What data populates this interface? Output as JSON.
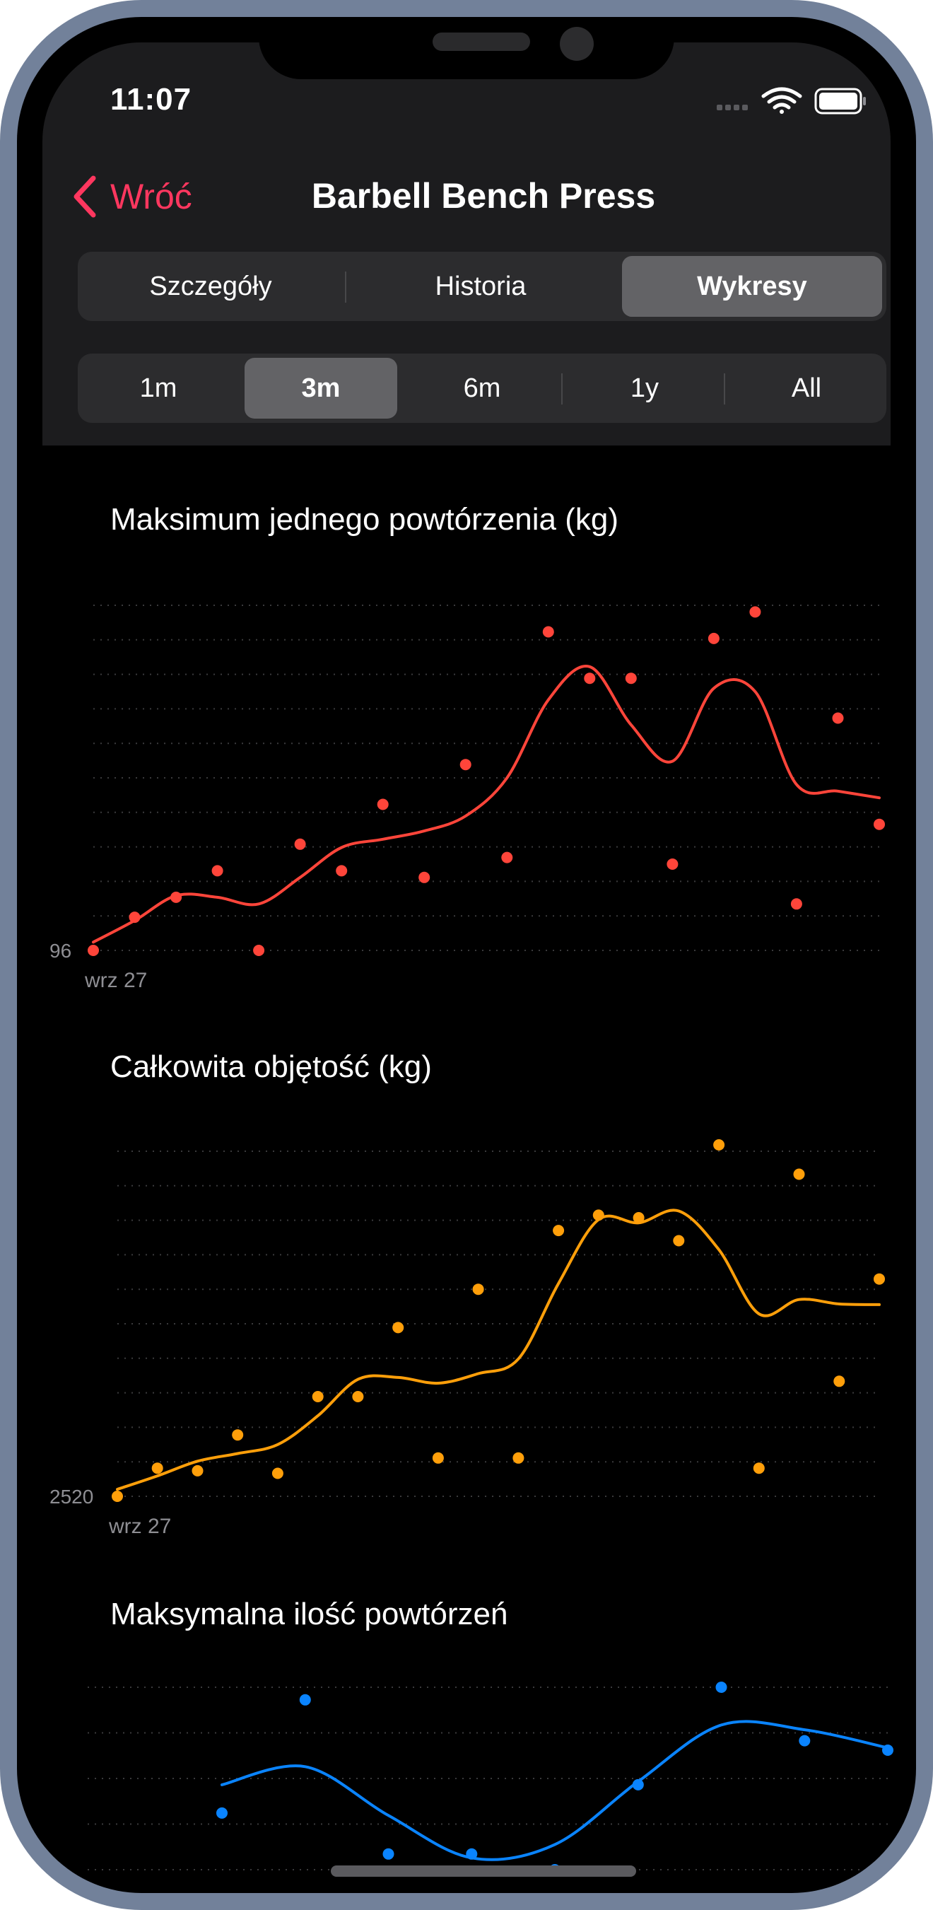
{
  "status_bar": {
    "time": "11:07",
    "icons": [
      "cellular-signal-icon",
      "wifi-icon",
      "battery-icon"
    ]
  },
  "nav": {
    "back_label": "Wróć",
    "title": "Barbell Bench Press"
  },
  "tabs": [
    {
      "label": "Szczegóły",
      "selected": false
    },
    {
      "label": "Historia",
      "selected": false
    },
    {
      "label": "Wykresy",
      "selected": true
    }
  ],
  "ranges": [
    {
      "label": "1m",
      "selected": false
    },
    {
      "label": "3m",
      "selected": true
    },
    {
      "label": "6m",
      "selected": false
    },
    {
      "label": "1y",
      "selected": false
    },
    {
      "label": "All",
      "selected": false
    }
  ],
  "colors": {
    "accent": "#ff375f",
    "one_rep_max": "#ff453a",
    "volume": "#ff9f0a",
    "reps": "#0a84ff",
    "background": "#000000",
    "panel": "#1c1c1e"
  },
  "chart_data": [
    {
      "type": "scatter",
      "title": "Maksimum jednego powtórzenia (kg)",
      "smoothed_line": true,
      "grid": true,
      "ylim": [
        96,
        122
      ],
      "y_tick_labels": [
        "96"
      ],
      "x_tick_labels": [
        "wrz 27"
      ],
      "series": [
        {
          "color": "#ff453a",
          "x": [
            0,
            1,
            2,
            3,
            4,
            5,
            6,
            7,
            8,
            9,
            10,
            11,
            12,
            13,
            14,
            15,
            16,
            17,
            18,
            19
          ],
          "y": [
            96,
            98.5,
            100,
            102,
            96,
            104,
            102,
            107,
            101.5,
            110,
            103,
            120,
            116.5,
            116.5,
            102.5,
            119.5,
            121.5,
            99.5,
            113.5,
            105.5
          ]
        }
      ]
    },
    {
      "type": "scatter",
      "title": "Całkowita objętość (kg)",
      "smoothed_line": true,
      "grid": true,
      "ylim": [
        2520,
        2790
      ],
      "y_tick_labels": [
        "2520"
      ],
      "x_tick_labels": [
        "wrz 27"
      ],
      "series": [
        {
          "color": "#ff9f0a",
          "x": [
            0,
            1,
            2,
            3,
            4,
            5,
            6,
            7,
            8,
            9,
            10,
            11,
            12,
            13,
            14,
            15,
            16,
            17,
            18,
            19
          ],
          "y": [
            2520,
            2542,
            2540,
            2568,
            2538,
            2598,
            2598,
            2652,
            2550,
            2682,
            2550,
            2728,
            2740,
            2738,
            2720,
            2795,
            2542,
            2772,
            2610,
            2690
          ]
        }
      ]
    },
    {
      "type": "scatter",
      "title": "Maksymalna ilość powtórzeń",
      "smoothed_line": true,
      "grid": true,
      "series": [
        {
          "color": "#0a84ff",
          "x": [
            0,
            1,
            2,
            3,
            4,
            5,
            6,
            7,
            8
          ],
          "y": [
            7,
            10.6,
            5.7,
            5.7,
            5.2,
            7.9,
            11,
            9.3,
            9
          ]
        }
      ]
    }
  ]
}
